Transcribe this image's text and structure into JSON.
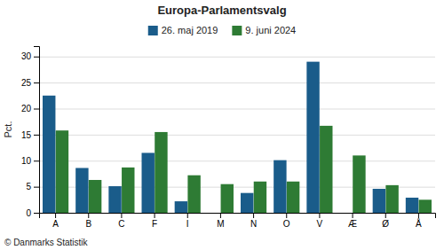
{
  "chart_data": {
    "type": "bar",
    "title": "Europa-Parlamentsvalg",
    "categories": [
      "A",
      "B",
      "C",
      "F",
      "I",
      "M",
      "N",
      "O",
      "V",
      "Æ",
      "Ø",
      "Å"
    ],
    "series": [
      {
        "name": "26. maj 2019",
        "color": "#1a5c8a",
        "values": [
          22.5,
          8.6,
          5.1,
          11.5,
          2.2,
          0.0,
          3.8,
          10.1,
          29.0,
          0.0,
          4.6,
          2.9
        ]
      },
      {
        "name": "9. juni 2024",
        "color": "#2e7b34",
        "values": [
          15.8,
          6.3,
          8.7,
          15.5,
          7.2,
          5.5,
          6.0,
          6.0,
          16.7,
          11.0,
          5.3,
          2.5
        ]
      }
    ],
    "ylabel": "Pct.",
    "ylim": [
      0,
      32
    ],
    "yticks": [
      0,
      5,
      10,
      15,
      20,
      25,
      30
    ],
    "grid": true,
    "legend": "top",
    "footer": "© Danmarks Statistik"
  }
}
